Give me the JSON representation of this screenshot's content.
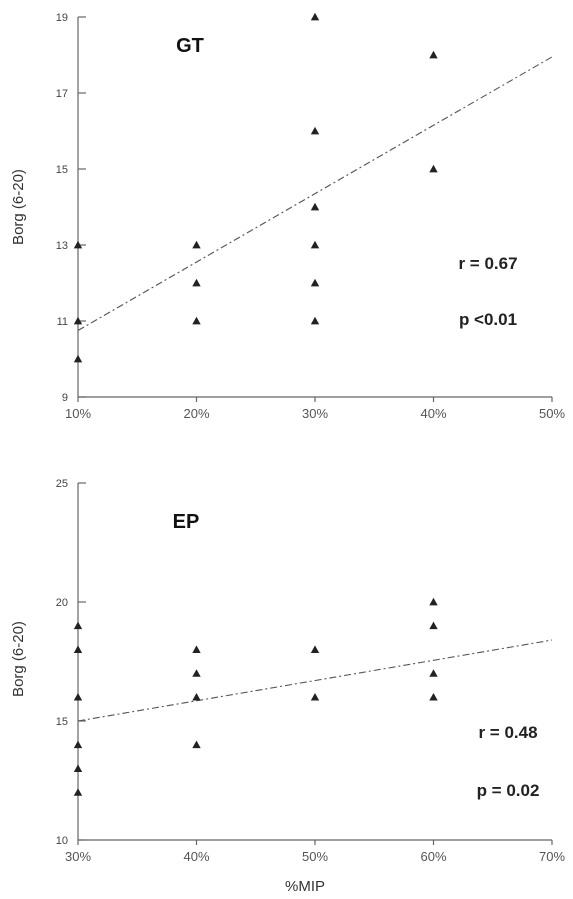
{
  "chart_data": [
    {
      "type": "scatter",
      "title": "GT",
      "ylabel": "Borg (6-20)",
      "xlabel": "",
      "x_ticks": [
        "10%",
        "20%",
        "30%",
        "40%",
        "50%"
      ],
      "y_ticks": [
        "9",
        "11",
        "13",
        "15",
        "17",
        "19"
      ],
      "xlim": [
        10,
        50
      ],
      "ylim": [
        9,
        19
      ],
      "points": [
        {
          "x": 10,
          "y": 13
        },
        {
          "x": 10,
          "y": 11
        },
        {
          "x": 10,
          "y": 10
        },
        {
          "x": 20,
          "y": 13
        },
        {
          "x": 20,
          "y": 12
        },
        {
          "x": 20,
          "y": 11
        },
        {
          "x": 30,
          "y": 19
        },
        {
          "x": 30,
          "y": 16
        },
        {
          "x": 30,
          "y": 14
        },
        {
          "x": 30,
          "y": 13
        },
        {
          "x": 30,
          "y": 12
        },
        {
          "x": 30,
          "y": 11
        },
        {
          "x": 40,
          "y": 18
        },
        {
          "x": 40,
          "y": 15
        }
      ],
      "trendline": {
        "x": [
          10,
          50
        ],
        "y": [
          10.75,
          17.95
        ]
      },
      "annotations": [
        "r = 0.67",
        "p <0.01"
      ],
      "grid": false,
      "marker_color": "#222222"
    },
    {
      "type": "scatter",
      "title": "EP",
      "ylabel": "Borg (6-20)",
      "xlabel": "%MIP",
      "x_ticks": [
        "30%",
        "40%",
        "50%",
        "60%",
        "70%"
      ],
      "y_ticks": [
        "10",
        "15",
        "20",
        "25"
      ],
      "xlim": [
        30,
        70
      ],
      "ylim": [
        10,
        25
      ],
      "points": [
        {
          "x": 30,
          "y": 19
        },
        {
          "x": 30,
          "y": 18
        },
        {
          "x": 30,
          "y": 16
        },
        {
          "x": 30,
          "y": 14
        },
        {
          "x": 30,
          "y": 13
        },
        {
          "x": 30,
          "y": 12
        },
        {
          "x": 40,
          "y": 18
        },
        {
          "x": 40,
          "y": 17
        },
        {
          "x": 40,
          "y": 16
        },
        {
          "x": 40,
          "y": 14
        },
        {
          "x": 50,
          "y": 18
        },
        {
          "x": 50,
          "y": 16
        },
        {
          "x": 60,
          "y": 20
        },
        {
          "x": 60,
          "y": 19
        },
        {
          "x": 60,
          "y": 17
        },
        {
          "x": 60,
          "y": 16
        }
      ],
      "trendline": {
        "x": [
          30,
          70
        ],
        "y": [
          15.0,
          18.4
        ]
      },
      "annotations": [
        "r = 0.48",
        "p = 0.02"
      ],
      "grid": false,
      "marker_color": "#222222"
    }
  ]
}
